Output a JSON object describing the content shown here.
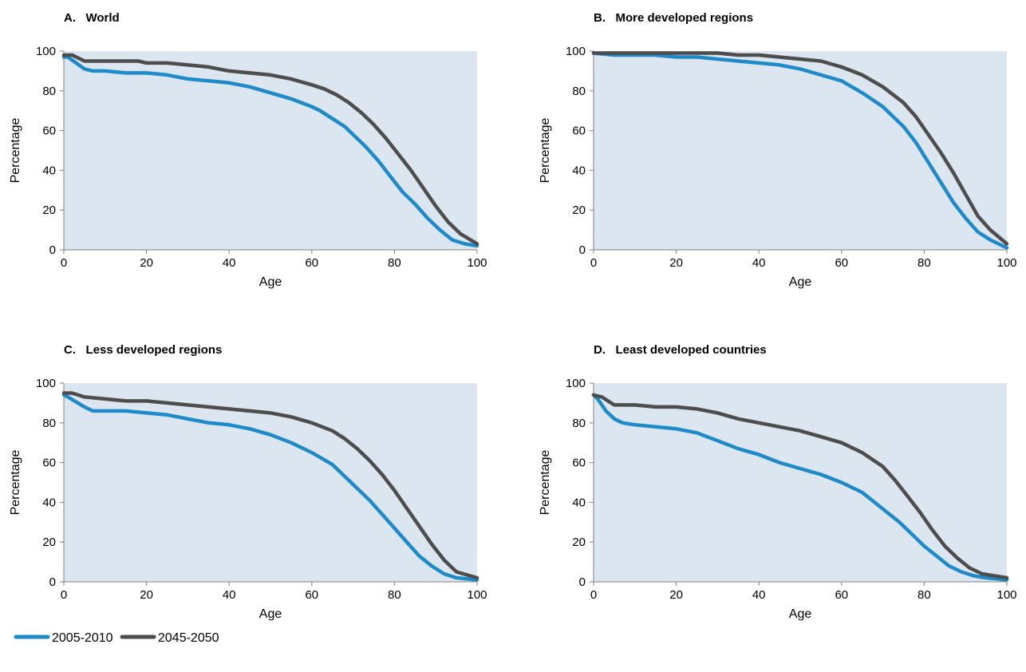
{
  "chart_data": [
    {
      "type": "line",
      "title": "A.   World",
      "xlabel": "Age",
      "ylabel": "Percentage",
      "xlim": [
        0,
        100
      ],
      "ylim": [
        0,
        100
      ],
      "xticks": [
        "0",
        "20",
        "40",
        "60",
        "80",
        "100"
      ],
      "yticks": [
        "0",
        "20",
        "40",
        "60",
        "80",
        "100"
      ],
      "grid": false,
      "series": [
        {
          "name": "2005-2010",
          "color": "#1f8ac9",
          "x": [
            0,
            1,
            5,
            7,
            10,
            15,
            20,
            25,
            30,
            35,
            40,
            45,
            50,
            55,
            60,
            62,
            65,
            68,
            70,
            73,
            76,
            79,
            82,
            85,
            88,
            91,
            94,
            97,
            100
          ],
          "y": [
            97,
            97,
            91,
            90,
            90,
            89,
            89,
            88,
            86,
            85,
            84,
            82,
            79,
            76,
            72,
            70,
            66,
            62,
            58,
            52,
            45,
            37,
            29,
            23,
            16,
            10,
            5,
            3,
            2
          ]
        },
        {
          "name": "2045-2050",
          "color": "#4d4d4d",
          "x": [
            0,
            2,
            5,
            10,
            18,
            20,
            25,
            30,
            35,
            40,
            45,
            50,
            55,
            60,
            63,
            66,
            69,
            72,
            75,
            78,
            81,
            84,
            87,
            90,
            93,
            96,
            100
          ],
          "y": [
            98,
            98,
            95,
            95,
            95,
            94,
            94,
            93,
            92,
            90,
            89,
            88,
            86,
            83,
            81,
            78,
            74,
            69,
            63,
            56,
            48,
            40,
            31,
            22,
            14,
            8,
            3
          ]
        }
      ]
    },
    {
      "type": "line",
      "title": "B.   More developed regions",
      "xlabel": "Age",
      "ylabel": "Percentage",
      "xlim": [
        0,
        100
      ],
      "ylim": [
        0,
        100
      ],
      "xticks": [
        "0",
        "20",
        "40",
        "60",
        "80",
        "100"
      ],
      "yticks": [
        "0",
        "20",
        "40",
        "60",
        "80",
        "100"
      ],
      "grid": false,
      "series": [
        {
          "name": "2005-2010",
          "color": "#1f8ac9",
          "x": [
            0,
            5,
            10,
            15,
            20,
            25,
            30,
            35,
            40,
            45,
            50,
            55,
            60,
            65,
            70,
            72,
            75,
            78,
            81,
            84,
            87,
            90,
            93,
            96,
            100
          ],
          "y": [
            99,
            98,
            98,
            98,
            97,
            97,
            96,
            95,
            94,
            93,
            91,
            88,
            85,
            79,
            72,
            68,
            62,
            54,
            44,
            34,
            24,
            16,
            9,
            5,
            1
          ]
        },
        {
          "name": "2045-2050",
          "color": "#4d4d4d",
          "x": [
            0,
            5,
            10,
            20,
            30,
            35,
            40,
            45,
            50,
            55,
            60,
            65,
            70,
            75,
            78,
            81,
            84,
            87,
            90,
            93,
            96,
            100
          ],
          "y": [
            99,
            99,
            99,
            99,
            99,
            98,
            98,
            97,
            96,
            95,
            92,
            88,
            82,
            74,
            67,
            58,
            49,
            39,
            28,
            17,
            10,
            3
          ]
        }
      ]
    },
    {
      "type": "line",
      "title": "C.   Less developed regions",
      "xlabel": "Age",
      "ylabel": "Percentage",
      "xlim": [
        0,
        100
      ],
      "ylim": [
        0,
        100
      ],
      "xticks": [
        "0",
        "20",
        "40",
        "60",
        "80",
        "100"
      ],
      "yticks": [
        "0",
        "20",
        "40",
        "60",
        "80",
        "100"
      ],
      "grid": false,
      "series": [
        {
          "name": "2005-2010",
          "color": "#1f8ac9",
          "x": [
            0,
            1,
            5,
            7,
            10,
            15,
            20,
            25,
            30,
            35,
            40,
            45,
            50,
            55,
            60,
            65,
            68,
            71,
            74,
            77,
            80,
            83,
            86,
            89,
            92,
            95,
            100
          ],
          "y": [
            94,
            93,
            88,
            86,
            86,
            86,
            85,
            84,
            82,
            80,
            79,
            77,
            74,
            70,
            65,
            59,
            53,
            47,
            41,
            34,
            27,
            20,
            13,
            8,
            4,
            2,
            1
          ]
        },
        {
          "name": "2045-2050",
          "color": "#4d4d4d",
          "x": [
            0,
            2,
            5,
            10,
            15,
            20,
            25,
            30,
            35,
            40,
            45,
            50,
            55,
            60,
            65,
            68,
            71,
            74,
            77,
            80,
            83,
            86,
            89,
            92,
            95,
            100
          ],
          "y": [
            95,
            95,
            93,
            92,
            91,
            91,
            90,
            89,
            88,
            87,
            86,
            85,
            83,
            80,
            76,
            72,
            67,
            61,
            54,
            46,
            37,
            28,
            19,
            11,
            5,
            2
          ]
        }
      ]
    },
    {
      "type": "line",
      "title": "D.   Least developed countries",
      "xlabel": "Age",
      "ylabel": "Percentage",
      "xlim": [
        0,
        100
      ],
      "ylim": [
        0,
        100
      ],
      "xticks": [
        "0",
        "20",
        "40",
        "60",
        "80",
        "100"
      ],
      "yticks": [
        "0",
        "20",
        "40",
        "60",
        "80",
        "100"
      ],
      "grid": false,
      "series": [
        {
          "name": "2005-2010",
          "color": "#1f8ac9",
          "x": [
            0,
            1,
            3,
            5,
            7,
            10,
            15,
            20,
            25,
            30,
            35,
            40,
            45,
            50,
            55,
            60,
            65,
            68,
            71,
            74,
            77,
            80,
            83,
            86,
            89,
            92,
            95,
            100
          ],
          "y": [
            94,
            92,
            86,
            82,
            80,
            79,
            78,
            77,
            75,
            71,
            67,
            64,
            60,
            57,
            54,
            50,
            45,
            40,
            35,
            30,
            24,
            18,
            13,
            8,
            5,
            3,
            2,
            1
          ]
        },
        {
          "name": "2045-2050",
          "color": "#4d4d4d",
          "x": [
            0,
            2,
            5,
            10,
            15,
            20,
            25,
            30,
            35,
            40,
            45,
            50,
            55,
            60,
            65,
            70,
            73,
            76,
            79,
            82,
            85,
            88,
            91,
            94,
            100
          ],
          "y": [
            94,
            93,
            89,
            89,
            88,
            88,
            87,
            85,
            82,
            80,
            78,
            76,
            73,
            70,
            65,
            58,
            51,
            43,
            35,
            26,
            18,
            12,
            7,
            4,
            2
          ]
        }
      ]
    }
  ],
  "legend": {
    "placement": "bottom-left",
    "entries": [
      {
        "label": "2005-2010",
        "color": "#1f8ac9"
      },
      {
        "label": "2045-2050",
        "color": "#4d4d4d"
      }
    ]
  },
  "style": {
    "plot_background": "#dce6f0",
    "axis_color": "#808080"
  }
}
